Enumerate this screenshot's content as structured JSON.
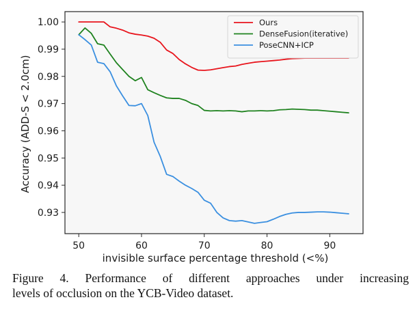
{
  "chart_data": {
    "type": "line",
    "title": "",
    "xlabel": "invisible surface percentage threshold (<%)",
    "ylabel": "Accuracy (ADD-S < 2.0cm)",
    "xlim": [
      47.8,
      95.3
    ],
    "ylim": [
      0.9222,
      1.0038
    ],
    "xticks": [
      50,
      60,
      70,
      80,
      90
    ],
    "xtick_labels": [
      "50",
      "60",
      "70",
      "80",
      "90"
    ],
    "yticks": [
      0.93,
      0.94,
      0.95,
      0.96,
      0.97,
      0.98,
      0.99,
      1.0
    ],
    "ytick_labels": [
      "0.93",
      "0.94",
      "0.95",
      "0.96",
      "0.97",
      "0.98",
      "0.99",
      "1.00"
    ],
    "grid": false,
    "legend_position": "top-right",
    "x": [
      50,
      51,
      52,
      53,
      54,
      55,
      56,
      57,
      58,
      59,
      60,
      61,
      62,
      63,
      64,
      65,
      66,
      67,
      68,
      69,
      70,
      71,
      72,
      73,
      74,
      75,
      76,
      77,
      78,
      79,
      80,
      81,
      82,
      83,
      84,
      85,
      86,
      87,
      88,
      89,
      90,
      91,
      92,
      93
    ],
    "series": [
      {
        "name": "Ours",
        "color": "#e8141c",
        "values": [
          1.0,
          1.0,
          1.0,
          1.0,
          1.0,
          0.9982,
          0.9977,
          0.997,
          0.996,
          0.9955,
          0.9952,
          0.9948,
          0.994,
          0.9925,
          0.9897,
          0.9884,
          0.9862,
          0.9846,
          0.9833,
          0.9823,
          0.9822,
          0.9824,
          0.9828,
          0.9832,
          0.9836,
          0.9838,
          0.9844,
          0.9848,
          0.9852,
          0.9854,
          0.9856,
          0.9858,
          0.986,
          0.9863,
          0.9865,
          0.9866,
          0.9867,
          0.9867,
          0.9867,
          0.9867,
          0.9867,
          0.9867,
          0.9867,
          0.9867
        ]
      },
      {
        "name": "DenseFusion(iterative)",
        "color": "#1e821e",
        "values": [
          0.9953,
          0.9978,
          0.9958,
          0.992,
          0.9915,
          0.9882,
          0.985,
          0.9825,
          0.98,
          0.9784,
          0.9796,
          0.9751,
          0.974,
          0.973,
          0.9721,
          0.9719,
          0.9719,
          0.9712,
          0.97,
          0.9693,
          0.9675,
          0.9673,
          0.9674,
          0.9673,
          0.9674,
          0.9673,
          0.967,
          0.9673,
          0.9673,
          0.9674,
          0.9673,
          0.9674,
          0.9677,
          0.9678,
          0.968,
          0.9679,
          0.9678,
          0.9676,
          0.9676,
          0.9674,
          0.9672,
          0.967,
          0.9668,
          0.9666
        ]
      },
      {
        "name": "PoseCNN+ICP",
        "color": "#3a8fe0",
        "values": [
          0.9953,
          0.9935,
          0.9915,
          0.9852,
          0.9847,
          0.9817,
          0.9765,
          0.9728,
          0.9693,
          0.9692,
          0.97,
          0.9656,
          0.9558,
          0.9505,
          0.944,
          0.9432,
          0.9415,
          0.94,
          0.9388,
          0.9374,
          0.9345,
          0.9334,
          0.93,
          0.928,
          0.927,
          0.9268,
          0.927,
          0.9265,
          0.926,
          0.9263,
          0.9266,
          0.9275,
          0.9285,
          0.9293,
          0.9298,
          0.93,
          0.93,
          0.9301,
          0.9302,
          0.9302,
          0.9301,
          0.9299,
          0.9297,
          0.9295
        ]
      }
    ]
  },
  "caption": {
    "line1": "Figure 4.   Performance of different approaches under increasing",
    "line2": "levels of occlusion on the YCB-Video dataset."
  },
  "colors": {
    "plot_background": "#f7f7f7",
    "axis": "#262626"
  }
}
